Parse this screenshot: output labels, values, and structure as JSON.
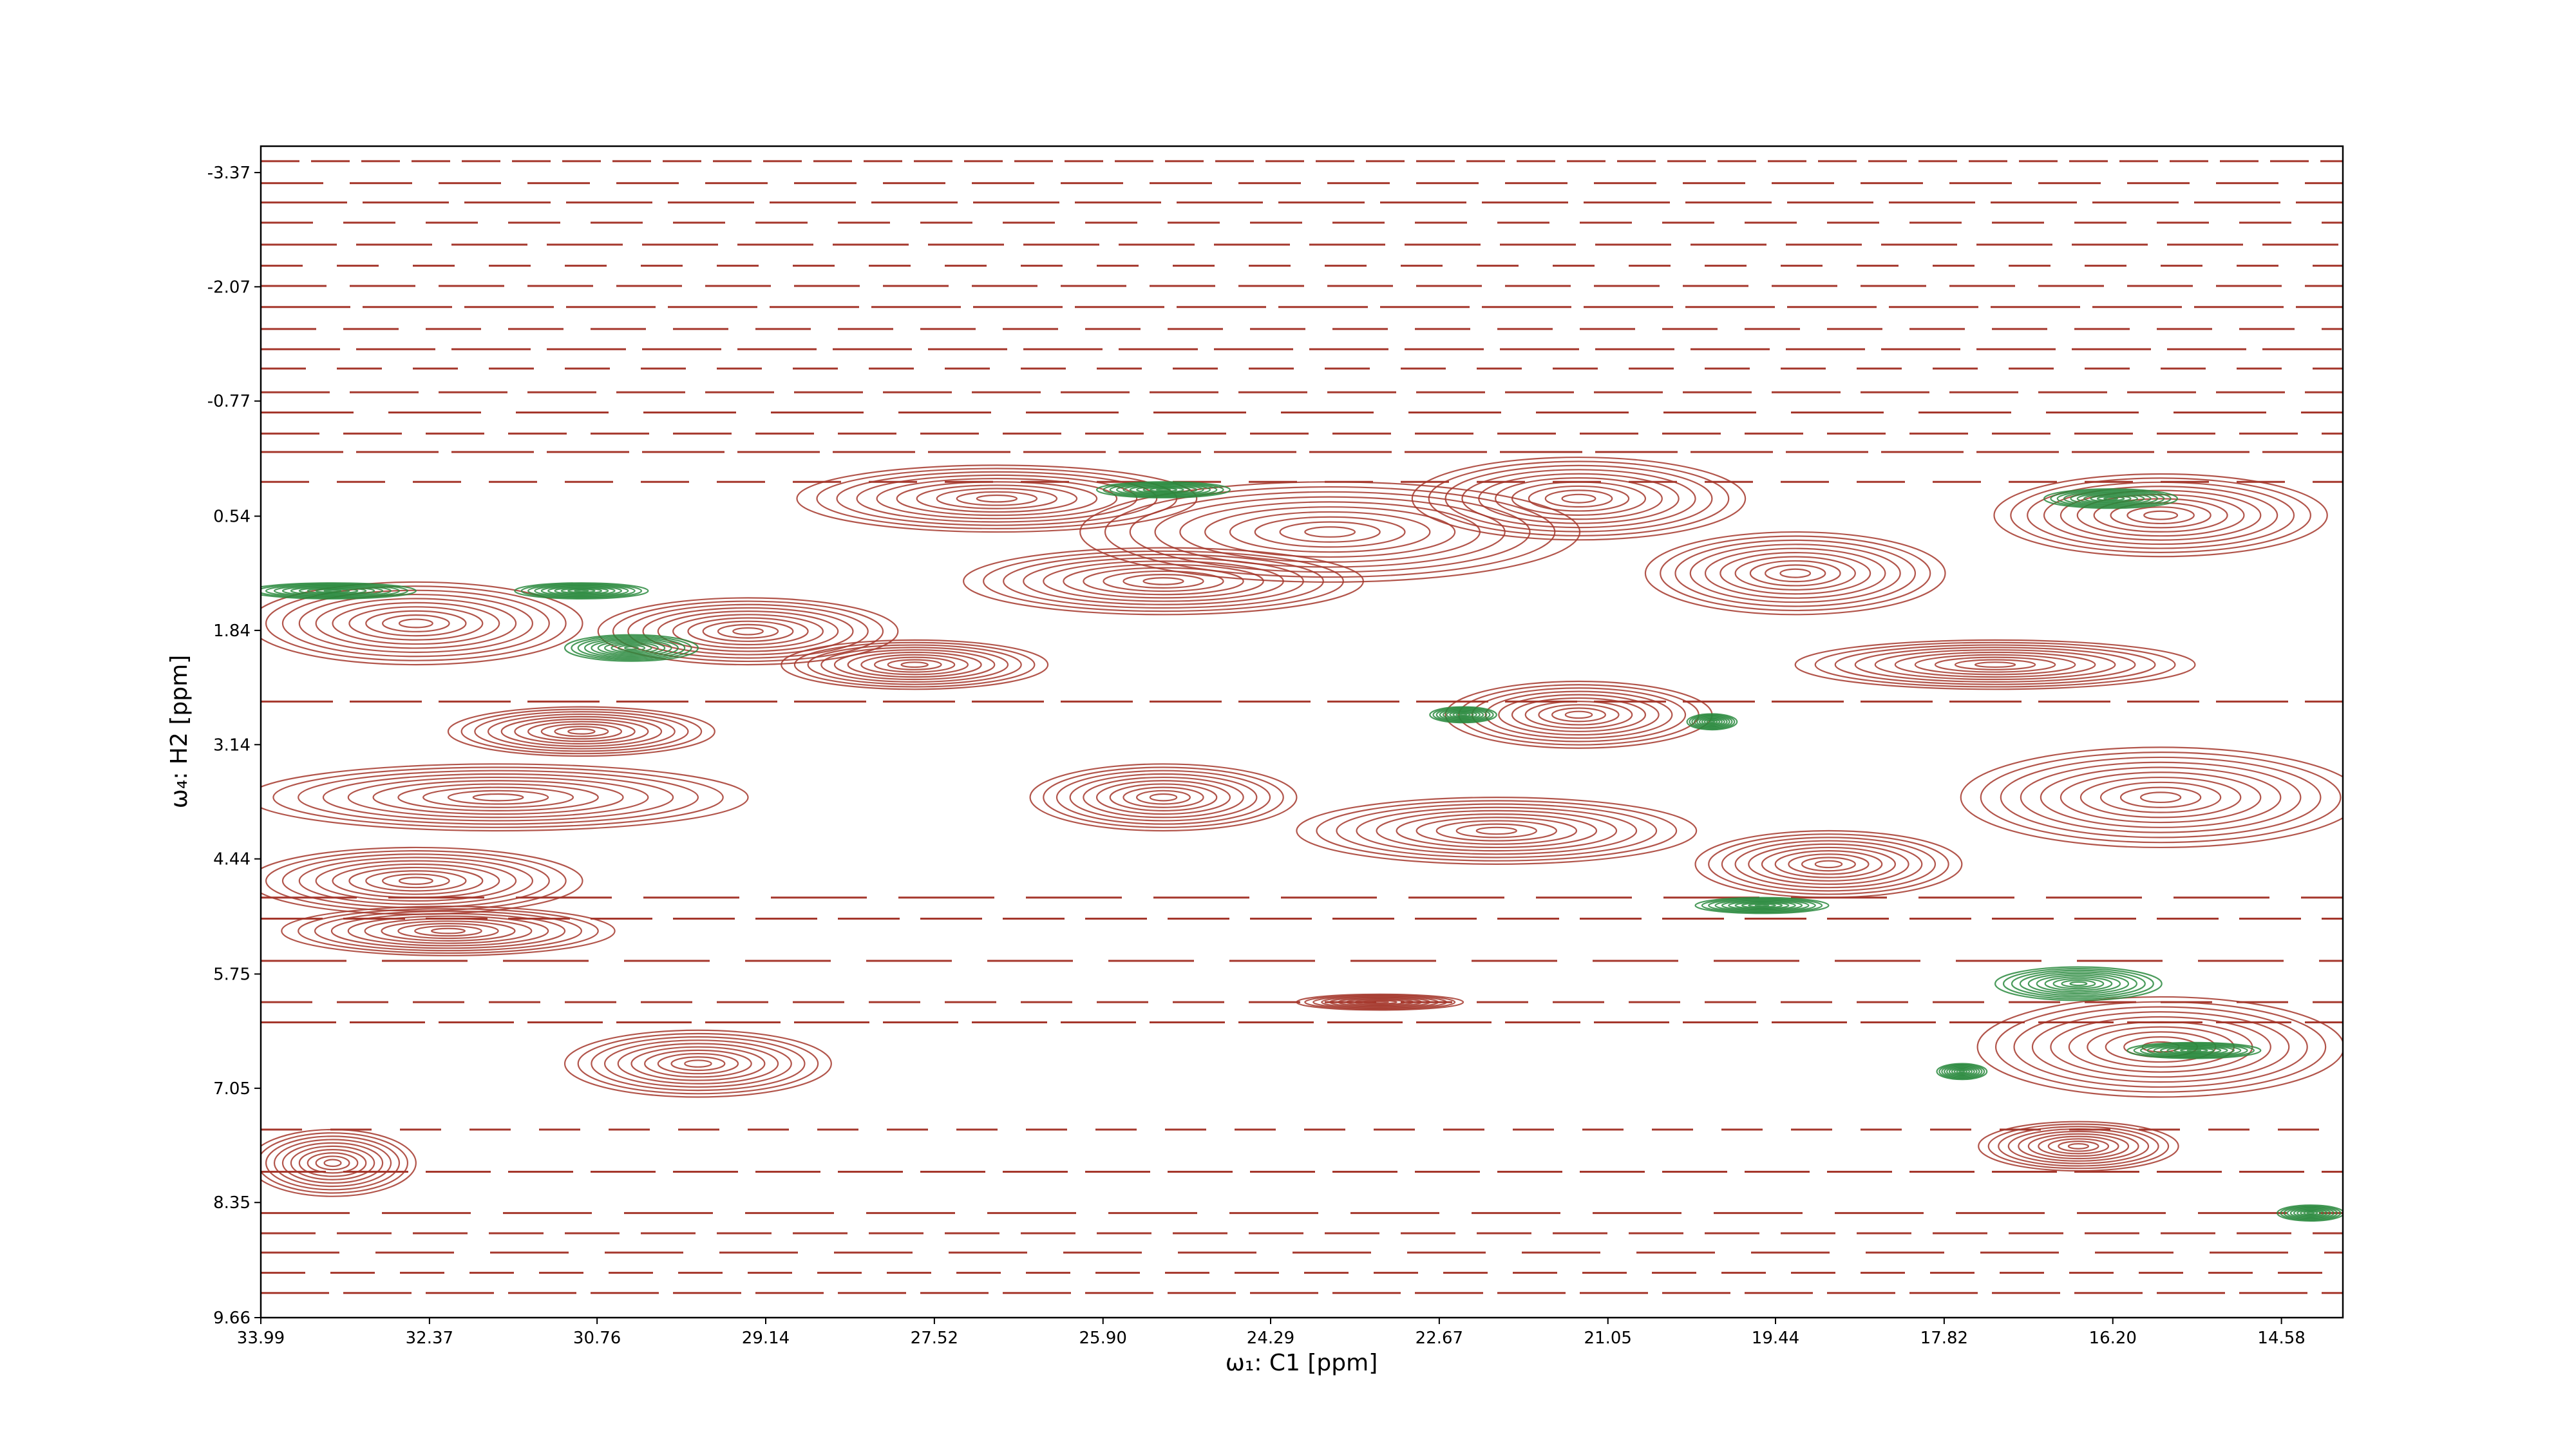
{
  "chart_data": {
    "type": "contour",
    "xlabel": "ω₁: C1 [ppm]",
    "ylabel": "ω₄: H2 [ppm]",
    "xlim": [
      33.99,
      13.99
    ],
    "ylim": [
      9.66,
      -3.67
    ],
    "xticks": [
      33.99,
      32.37,
      30.76,
      29.14,
      27.52,
      {
        "value": 25.9,
        "label": "25.90"
      },
      24.29,
      22.67,
      21.05,
      19.44,
      17.82,
      {
        "value": 16.2,
        "label": "16.20"
      },
      14.58
    ],
    "yticks": [
      -3.37,
      -2.07,
      -0.77,
      0.54,
      1.84,
      3.14,
      4.44,
      5.75,
      7.05,
      8.35,
      9.66
    ],
    "ridge_color": "#a5372c",
    "ridges": [
      -3.5,
      -3.25,
      -3.03,
      -2.8,
      -2.55,
      -2.31,
      -2.08,
      -1.84,
      -1.59,
      -1.36,
      -1.14,
      -0.87,
      -0.64,
      -0.4,
      -0.19,
      0.15,
      2.65,
      4.88,
      5.12,
      5.6,
      6.07,
      6.3,
      7.52,
      8.0,
      8.47,
      8.7,
      8.92,
      9.15,
      9.38
    ],
    "levels": [
      {
        "color": "#a5372c",
        "peaks": [
          [
            26.92,
            0.34,
            1.92,
            0.38
          ],
          [
            23.72,
            0.72,
            2.4,
            0.57
          ],
          [
            21.33,
            0.34,
            1.6,
            0.47
          ],
          [
            19.25,
            1.19,
            1.44,
            0.47
          ],
          [
            15.74,
            0.53,
            1.6,
            0.47
          ],
          [
            32.5,
            1.76,
            1.6,
            0.47
          ],
          [
            29.31,
            1.85,
            1.44,
            0.38
          ],
          [
            25.32,
            1.28,
            1.92,
            0.38
          ],
          [
            21.33,
            2.8,
            1.28,
            0.38
          ],
          [
            30.91,
            2.99,
            1.28,
            0.28
          ],
          [
            31.71,
            3.74,
            2.4,
            0.38
          ],
          [
            25.32,
            3.74,
            1.28,
            0.38
          ],
          [
            22.12,
            4.12,
            1.92,
            0.38
          ],
          [
            15.74,
            3.74,
            1.92,
            0.57
          ],
          [
            32.5,
            4.69,
            1.6,
            0.38
          ],
          [
            18.93,
            4.5,
            1.28,
            0.38
          ],
          [
            32.19,
            5.26,
            1.6,
            0.28
          ],
          [
            29.79,
            6.77,
            1.28,
            0.38
          ],
          [
            15.74,
            6.58,
            1.76,
            0.57
          ],
          [
            23.24,
            6.07,
            0.8,
            0.09
          ],
          [
            33.3,
            7.9,
            0.8,
            0.38
          ],
          [
            16.53,
            7.71,
            0.96,
            0.28
          ],
          [
            27.71,
            2.23,
            1.28,
            0.28
          ],
          [
            17.33,
            2.23,
            1.92,
            0.28
          ]
        ]
      },
      {
        "color": "#2a8a3e",
        "peaks": [
          [
            16.22,
            0.34,
            0.64,
            0.11
          ],
          [
            25.32,
            0.24,
            0.64,
            0.09
          ],
          [
            30.43,
            2.04,
            0.64,
            0.15
          ],
          [
            15.42,
            6.62,
            0.64,
            0.09
          ],
          [
            16.53,
            5.86,
            0.8,
            0.19
          ],
          [
            20.05,
            2.88,
            0.24,
            0.09
          ],
          [
            22.44,
            2.8,
            0.32,
            0.09
          ],
          [
            33.3,
            1.39,
            0.8,
            0.09
          ],
          [
            30.91,
            1.39,
            0.64,
            0.09
          ],
          [
            17.65,
            6.86,
            0.24,
            0.09
          ],
          [
            14.3,
            8.47,
            0.32,
            0.09
          ],
          [
            19.57,
            4.97,
            0.64,
            0.09
          ]
        ]
      }
    ]
  }
}
